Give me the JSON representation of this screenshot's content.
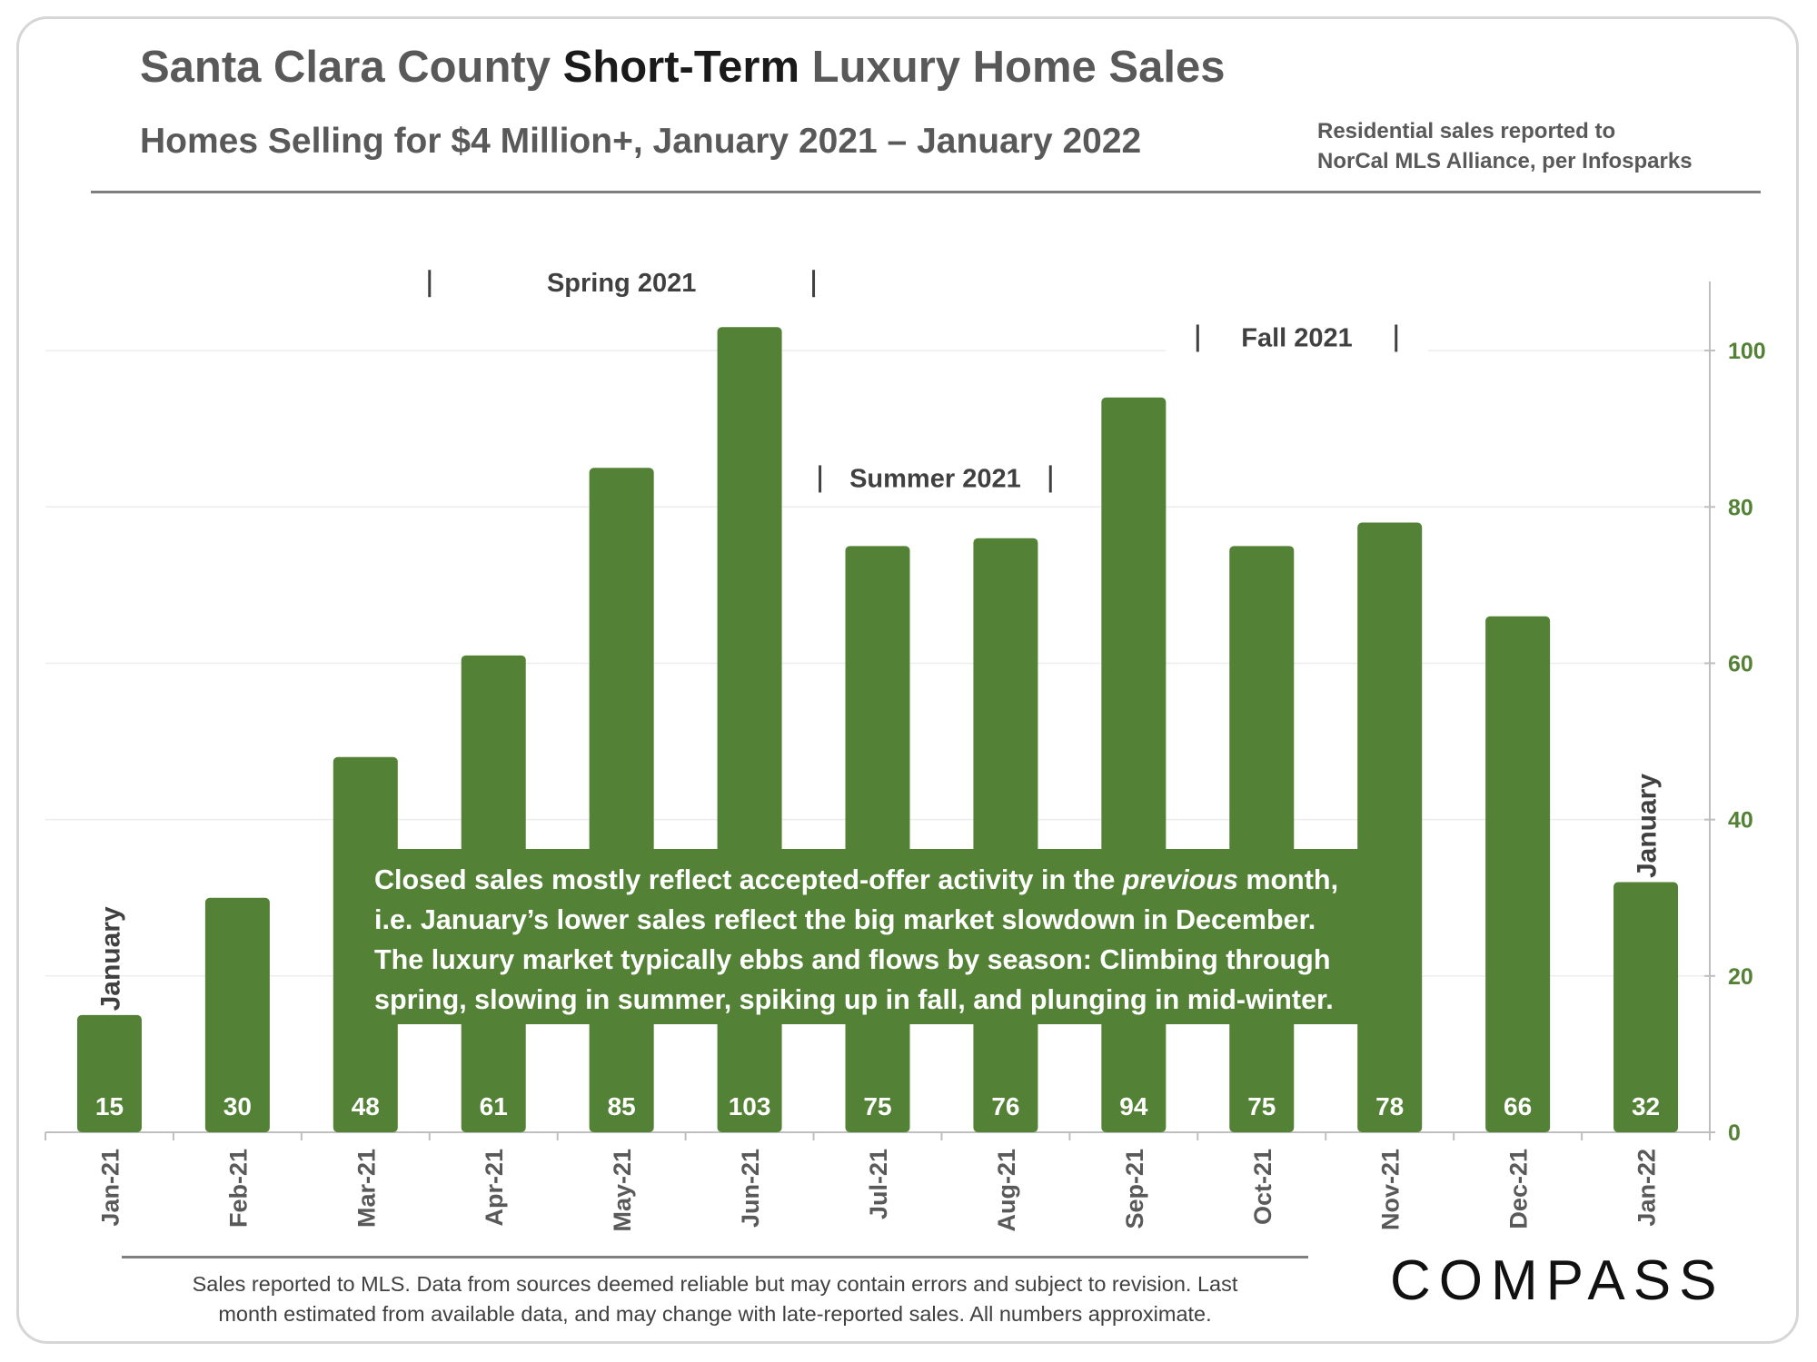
{
  "header": {
    "title_part1": "Santa Clara County ",
    "title_strong": "Short-Term",
    "title_part2": " Luxury Home Sales",
    "subtitle": "Homes Selling for $4 Million+, January 2021 – January 2022",
    "source_line1": "Residential sales reported to",
    "source_line2": "NorCal MLS Alliance, per Infosparks"
  },
  "annotation": {
    "line1_pre": "Closed sales mostly reflect accepted-offer activity in the ",
    "line1_em": "previous",
    "line1_post": " month,",
    "line2": "i.e. January’s lower sales reflect the big market slowdown in December.",
    "line3": "The luxury market typically ebbs and flows by season: Climbing through",
    "line4": "spring, slowing in summer, spiking up in fall, and plunging in mid-winter."
  },
  "footer": {
    "note_line1": "Sales reported to MLS. Data from sources deemed reliable but may contain errors and subject to revision.  Last",
    "note_line2": "month estimated from available data, and may change with late-reported sales. All numbers approximate.",
    "logo": "COMPASS"
  },
  "colors": {
    "bar": "#538135",
    "axis_text": "#538135",
    "label_text": "#ffffff",
    "season_text": "#404040"
  },
  "chart_data": {
    "type": "bar",
    "categories": [
      "Jan-21",
      "Feb-21",
      "Mar-21",
      "Apr-21",
      "May-21",
      "Jun-21",
      "Jul-21",
      "Aug-21",
      "Sep-21",
      "Oct-21",
      "Nov-21",
      "Dec-21",
      "Jan-22"
    ],
    "values": [
      15,
      30,
      48,
      61,
      85,
      103,
      75,
      76,
      94,
      75,
      78,
      66,
      32
    ],
    "ylim": [
      0,
      110
    ],
    "yticks": [
      0,
      20,
      40,
      60,
      80,
      100
    ],
    "y_axis_side": "right",
    "grid": true,
    "data_labels": true,
    "season_labels": [
      {
        "text": "Spring 2021",
        "from": 2.5,
        "to": 5.5,
        "level": 108
      },
      {
        "text": "Summer 2021",
        "from": 5.55,
        "to": 7.35,
        "level": 83
      },
      {
        "text": "Fall 2021",
        "from": 8.5,
        "to": 10.05,
        "level": 101
      }
    ],
    "bar_side_labels": [
      {
        "text": "January",
        "category": 0
      },
      {
        "text": "January",
        "category": 12
      }
    ]
  }
}
